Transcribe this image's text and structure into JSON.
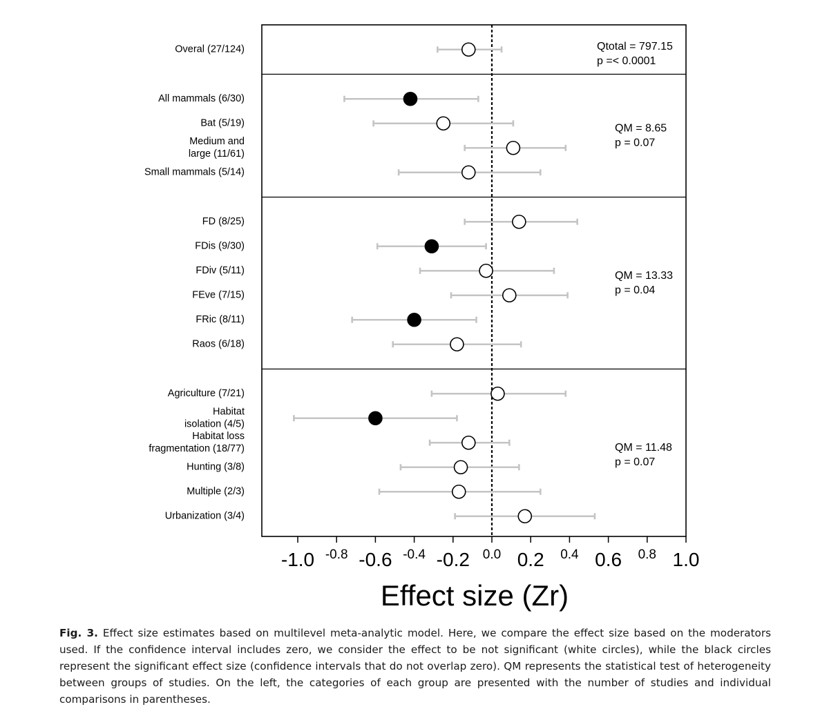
{
  "chart_data": {
    "type": "forest",
    "xlabel": "Effect size (Zr)",
    "xlim": [
      -1.2,
      1.0
    ],
    "xticks": [
      {
        "value": -1.0,
        "label": "-1.0",
        "size": "large"
      },
      {
        "value": -0.8,
        "label": "-0.8",
        "size": "small"
      },
      {
        "value": -0.6,
        "label": "-0.6",
        "size": "large"
      },
      {
        "value": -0.4,
        "label": "-0.4",
        "size": "small"
      },
      {
        "value": -0.2,
        "label": "-0.2",
        "size": "large"
      },
      {
        "value": 0.0,
        "label": "0.0",
        "size": "small"
      },
      {
        "value": 0.2,
        "label": "0.2",
        "size": "large"
      },
      {
        "value": 0.4,
        "label": "0.4",
        "size": "small"
      },
      {
        "value": 0.6,
        "label": "0.6",
        "size": "large"
      },
      {
        "value": 0.8,
        "label": "0.8",
        "size": "small"
      },
      {
        "value": 1.0,
        "label": "1.0",
        "size": "large"
      }
    ],
    "reference_line": 0,
    "groups": [
      {
        "stat_lines": [
          "Qtotal = 797.15",
          "p =< 0.0001"
        ],
        "rows": [
          {
            "label": [
              "Overal (27/124)"
            ],
            "estimate": -0.12,
            "ci": [
              -0.28,
              0.05
            ],
            "significant": false
          }
        ]
      },
      {
        "stat_lines": [
          "QM = 8.65",
          "p = 0.07"
        ],
        "rows": [
          {
            "label": [
              "All mammals (6/30)"
            ],
            "estimate": -0.42,
            "ci": [
              -0.76,
              -0.07
            ],
            "significant": true
          },
          {
            "label": [
              "Bat (5/19)"
            ],
            "estimate": -0.25,
            "ci": [
              -0.61,
              0.11
            ],
            "significant": false
          },
          {
            "label": [
              "Medium and",
              "large (11/61)"
            ],
            "estimate": 0.11,
            "ci": [
              -0.14,
              0.38
            ],
            "significant": false
          },
          {
            "label": [
              "Small mammals (5/14)"
            ],
            "estimate": -0.12,
            "ci": [
              -0.48,
              0.25
            ],
            "significant": false
          }
        ]
      },
      {
        "stat_lines": [
          "QM = 13.33",
          "p = 0.04"
        ],
        "rows": [
          {
            "label": [
              "FD (8/25)"
            ],
            "estimate": 0.14,
            "ci": [
              -0.14,
              0.44
            ],
            "significant": false
          },
          {
            "label": [
              "FDis (9/30)"
            ],
            "estimate": -0.31,
            "ci": [
              -0.59,
              -0.03
            ],
            "significant": true
          },
          {
            "label": [
              "FDiv (5/11)"
            ],
            "estimate": -0.03,
            "ci": [
              -0.37,
              0.32
            ],
            "significant": false
          },
          {
            "label": [
              "FEve (7/15)"
            ],
            "estimate": 0.09,
            "ci": [
              -0.21,
              0.39
            ],
            "significant": false
          },
          {
            "label": [
              "FRic (8/11)"
            ],
            "estimate": -0.4,
            "ci": [
              -0.72,
              -0.08
            ],
            "significant": true
          },
          {
            "label": [
              "Raos (6/18)"
            ],
            "estimate": -0.18,
            "ci": [
              -0.51,
              0.15
            ],
            "significant": false
          }
        ]
      },
      {
        "stat_lines": [
          "QM = 11.48",
          "p = 0.07"
        ],
        "rows": [
          {
            "label": [
              "Agriculture (7/21)"
            ],
            "estimate": 0.03,
            "ci": [
              -0.31,
              0.38
            ],
            "significant": false
          },
          {
            "label": [
              "Habitat",
              "isolation (4/5)"
            ],
            "estimate": -0.6,
            "ci": [
              -1.02,
              -0.18
            ],
            "significant": true
          },
          {
            "label": [
              "Habitat loss",
              "fragmentation (18/77)"
            ],
            "estimate": -0.12,
            "ci": [
              -0.32,
              0.09
            ],
            "significant": false
          },
          {
            "label": [
              "Hunting (3/8)"
            ],
            "estimate": -0.16,
            "ci": [
              -0.47,
              0.14
            ],
            "significant": false
          },
          {
            "label": [
              "Multiple (2/3)"
            ],
            "estimate": -0.17,
            "ci": [
              -0.58,
              0.25
            ],
            "significant": false
          },
          {
            "label": [
              "Urbanization (3/4)"
            ],
            "estimate": 0.17,
            "ci": [
              -0.19,
              0.53
            ],
            "significant": false
          }
        ]
      }
    ],
    "colors": {
      "ci_line": "#c4c4c4",
      "significant_fill": "#000000",
      "nonsignificant_fill": "#ffffff"
    }
  },
  "caption": {
    "label": "Fig. 3.",
    "text": "Effect size estimates based on multilevel meta-analytic model. Here, we compare the effect size based on the moderators used. If the confidence interval includes zero, we consider the effect to be not significant (white circles), while the black circles represent the significant effect size (confidence intervals that do not overlap zero). QM represents the statistical test of heterogeneity between groups of studies. On the left, the categories of each group are presented with the number of studies and individual comparisons in parentheses."
  }
}
